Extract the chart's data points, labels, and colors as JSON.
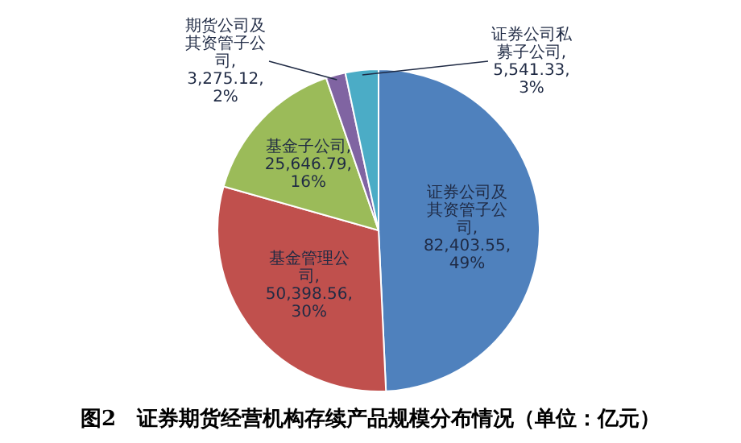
{
  "chart_data": {
    "type": "pie",
    "title": "图2　证券期货经营机构存续产品规模分布情况（单位：亿元）",
    "categories": [
      "证券公司及其资管子公司",
      "基金管理公司",
      "基金子公司",
      "期货公司及其资管子公司",
      "证券公司私募子公司"
    ],
    "values": [
      82403.55,
      50398.56,
      25646.79,
      3275.12,
      5541.33
    ],
    "value_labels": [
      ", 82,403.55, 49%",
      ", 50,398.56, 30%",
      ", 25,646.79, 16%",
      ", 3,275.12, 2%",
      ", 5,541.33, 3%"
    ],
    "colors": [
      "#4f81bd",
      "#c0504d",
      "#9bbb59",
      "#8064a2",
      "#4bacc6"
    ],
    "legend": false
  }
}
